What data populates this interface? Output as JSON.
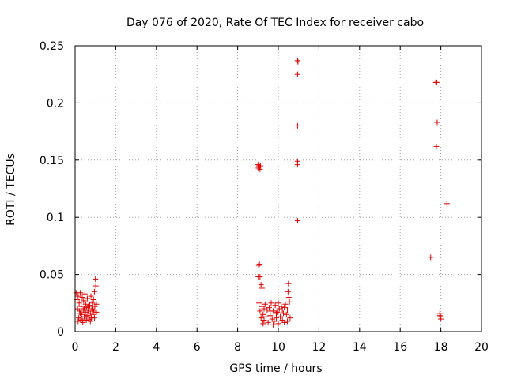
{
  "chart_data": {
    "type": "scatter",
    "title": "Day 076 of 2020, Rate Of TEC Index for receiver cabo",
    "xlabel": "GPS time / hours",
    "ylabel": "ROTI / TECUs",
    "xlim": [
      0,
      20
    ],
    "ylim": [
      0,
      0.25
    ],
    "x_ticks": [
      0,
      2,
      4,
      6,
      8,
      10,
      12,
      14,
      16,
      18,
      20
    ],
    "x_tick_labels": [
      "0",
      "2",
      "4",
      "6",
      "8",
      "10",
      "12",
      "14",
      "16",
      "18",
      "20"
    ],
    "y_ticks": [
      0,
      0.05,
      0.1,
      0.15,
      0.2,
      0.25
    ],
    "y_tick_labels": [
      "0",
      "0.05",
      "0.1",
      "0.15",
      "0.2",
      "0.25"
    ],
    "grid": true,
    "marker": "+",
    "color": "#e00000",
    "series": [
      {
        "name": "ROTI",
        "points": [
          [
            0.05,
            0.034
          ],
          [
            0.1,
            0.028
          ],
          [
            0.12,
            0.02
          ],
          [
            0.15,
            0.031
          ],
          [
            0.18,
            0.012
          ],
          [
            0.2,
            0.025
          ],
          [
            0.22,
            0.018
          ],
          [
            0.25,
            0.034
          ],
          [
            0.28,
            0.01
          ],
          [
            0.3,
            0.022
          ],
          [
            0.32,
            0.015
          ],
          [
            0.35,
            0.03
          ],
          [
            0.38,
            0.008
          ],
          [
            0.4,
            0.019
          ],
          [
            0.42,
            0.027
          ],
          [
            0.45,
            0.013
          ],
          [
            0.48,
            0.033
          ],
          [
            0.5,
            0.017
          ],
          [
            0.52,
            0.024
          ],
          [
            0.55,
            0.01
          ],
          [
            0.58,
            0.021
          ],
          [
            0.6,
            0.029
          ],
          [
            0.62,
            0.014
          ],
          [
            0.65,
            0.018
          ],
          [
            0.68,
            0.026
          ],
          [
            0.7,
            0.011
          ],
          [
            0.72,
            0.023
          ],
          [
            0.75,
            0.016
          ],
          [
            0.78,
            0.031
          ],
          [
            0.8,
            0.012
          ],
          [
            0.82,
            0.02
          ],
          [
            0.85,
            0.025
          ],
          [
            0.88,
            0.015
          ],
          [
            0.9,
            0.028
          ],
          [
            0.92,
            0.018
          ],
          [
            0.95,
            0.035
          ],
          [
            0.97,
            0.022
          ],
          [
            1.0,
            0.046
          ],
          [
            1.02,
            0.04
          ],
          [
            1.05,
            0.024
          ],
          [
            0.15,
            0.009
          ],
          [
            0.35,
            0.011
          ],
          [
            0.55,
            0.013
          ],
          [
            0.75,
            0.009
          ],
          [
            0.95,
            0.012
          ],
          [
            0.25,
            0.016
          ],
          [
            0.45,
            0.02
          ],
          [
            0.65,
            0.022
          ],
          [
            0.85,
            0.019
          ],
          [
            1.05,
            0.017
          ],
          [
            9.0,
            0.146
          ],
          [
            9.02,
            0.143
          ],
          [
            9.05,
            0.145
          ],
          [
            9.08,
            0.144
          ],
          [
            9.1,
            0.142
          ],
          [
            9.12,
            0.145
          ],
          [
            9.03,
            0.058
          ],
          [
            9.07,
            0.059
          ],
          [
            9.02,
            0.048
          ],
          [
            9.1,
            0.048
          ],
          [
            9.15,
            0.041
          ],
          [
            9.2,
            0.038
          ],
          [
            9.05,
            0.025
          ],
          [
            9.1,
            0.018
          ],
          [
            9.15,
            0.012
          ],
          [
            9.2,
            0.022
          ],
          [
            9.25,
            0.015
          ],
          [
            9.3,
            0.01
          ],
          [
            9.35,
            0.024
          ],
          [
            9.4,
            0.013
          ],
          [
            9.45,
            0.019
          ],
          [
            9.5,
            0.008
          ],
          [
            9.55,
            0.021
          ],
          [
            9.6,
            0.014
          ],
          [
            9.65,
            0.025
          ],
          [
            9.7,
            0.011
          ],
          [
            9.75,
            0.018
          ],
          [
            9.8,
            0.009
          ],
          [
            9.85,
            0.023
          ],
          [
            9.9,
            0.012
          ],
          [
            9.95,
            0.017
          ],
          [
            10.0,
            0.007
          ],
          [
            10.05,
            0.02
          ],
          [
            10.1,
            0.013
          ],
          [
            10.15,
            0.022
          ],
          [
            10.2,
            0.01
          ],
          [
            10.25,
            0.016
          ],
          [
            10.3,
            0.008
          ],
          [
            10.35,
            0.024
          ],
          [
            10.4,
            0.015
          ],
          [
            10.45,
            0.019
          ],
          [
            10.48,
            0.035
          ],
          [
            10.5,
            0.042
          ],
          [
            10.52,
            0.03
          ],
          [
            10.55,
            0.026
          ],
          [
            10.58,
            0.012
          ],
          [
            9.3,
            0.02
          ],
          [
            9.6,
            0.018
          ],
          [
            9.9,
            0.016
          ],
          [
            10.2,
            0.019
          ],
          [
            9.25,
            0.007
          ],
          [
            9.75,
            0.006
          ],
          [
            10.0,
            0.025
          ],
          [
            10.3,
            0.021
          ],
          [
            10.45,
            0.009
          ],
          [
            10.95,
            0.237
          ],
          [
            10.97,
            0.236
          ],
          [
            10.95,
            0.225
          ],
          [
            10.95,
            0.18
          ],
          [
            10.95,
            0.149
          ],
          [
            10.95,
            0.146
          ],
          [
            10.95,
            0.097
          ],
          [
            17.75,
            0.218
          ],
          [
            17.8,
            0.218
          ],
          [
            17.82,
            0.183
          ],
          [
            17.78,
            0.162
          ],
          [
            18.3,
            0.112
          ],
          [
            17.5,
            0.065
          ],
          [
            17.95,
            0.016
          ],
          [
            17.98,
            0.013
          ],
          [
            18.0,
            0.011
          ],
          [
            17.95,
            0.014
          ]
        ]
      }
    ]
  }
}
